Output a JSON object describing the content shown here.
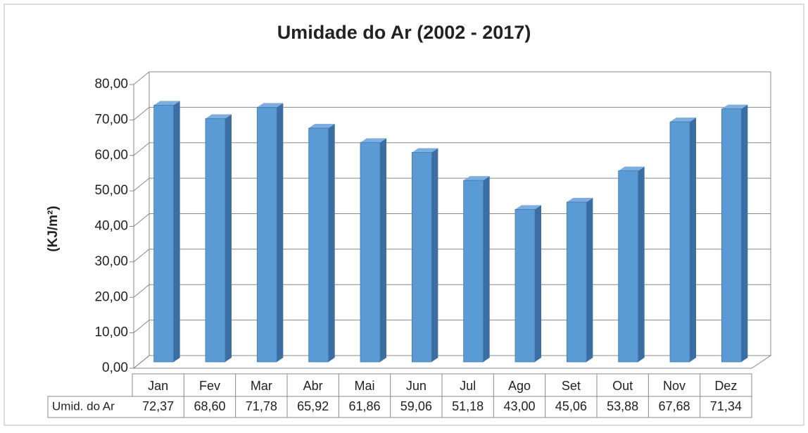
{
  "chart_data": {
    "type": "bar3d",
    "title": "Umidade do Ar (2002 - 2017)",
    "y_label": "(KJ/m²)",
    "categories": [
      "Jan",
      "Fev",
      "Mar",
      "Abr",
      "Mai",
      "Jun",
      "Jul",
      "Ago",
      "Set",
      "Out",
      "Nov",
      "Dez"
    ],
    "series": [
      {
        "name": "Umid. do Ar",
        "color": "#5b9bd5",
        "values": [
          72.37,
          68.6,
          71.78,
          65.92,
          61.86,
          59.06,
          51.18,
          43.0,
          45.06,
          53.88,
          67.68,
          71.34
        ],
        "value_labels": [
          "72,37",
          "68,60",
          "71,78",
          "65,92",
          "61,86",
          "59,06",
          "51,18",
          "43,00",
          "45,06",
          "53,88",
          "67,68",
          "71,34"
        ]
      }
    ],
    "ylim": [
      0,
      80
    ],
    "yticks": [
      {
        "value": 0,
        "label": "0,00"
      },
      {
        "value": 10,
        "label": "10,00"
      },
      {
        "value": 20,
        "label": "20,00"
      },
      {
        "value": 30,
        "label": "30,00"
      },
      {
        "value": 40,
        "label": "40,00"
      },
      {
        "value": 50,
        "label": "50,00"
      },
      {
        "value": 60,
        "label": "60,00"
      },
      {
        "value": 70,
        "label": "70,00"
      },
      {
        "value": 80,
        "label": "80,00"
      }
    ],
    "grid": true,
    "data_table": true
  }
}
